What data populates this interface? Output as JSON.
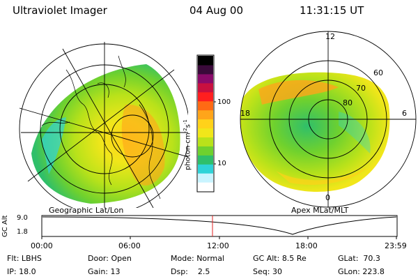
{
  "header": {
    "instrument": "Ultraviolet Imager",
    "date": "04 Aug 00",
    "time": "11:31:15 UT"
  },
  "colorbar": {
    "unit_prefix": "photon cm",
    "unit_exp1": "-2",
    "unit_mid": "s",
    "unit_exp2": "-1",
    "tick_100": "100",
    "tick_10": "10",
    "colors": [
      "#ffffff",
      "#c9f4ff",
      "#2fd3d8",
      "#2fbf6a",
      "#6fd12e",
      "#b9e21a",
      "#f1e61a",
      "#ffd21a",
      "#ffa51a",
      "#ff6a14",
      "#ff1f1f",
      "#c81040",
      "#8a0a6a",
      "#3a0a3a",
      "#000000"
    ]
  },
  "left_panel": {
    "label": "Geographic Lat/Lon"
  },
  "right_panel": {
    "label": "Apex MLat/MLT",
    "mlt_12": "12",
    "mlt_18": "18",
    "mlt_6": "6",
    "mlt_0": "0",
    "lat_60": "60",
    "lat_70": "70",
    "lat_80": "80"
  },
  "altitude_plot": {
    "ylabel": "GC Alt",
    "y_max": "9.0",
    "y_min": "1.8",
    "x_ticks": [
      "00:00",
      "06:00",
      "12:00",
      "18:00",
      "23:59"
    ],
    "marker_color": "#e02020"
  },
  "status": {
    "flt_label": "Flt:",
    "flt_value": "LBHS",
    "ip_label": "IP:",
    "ip_value": "18.0",
    "door_label": "Door:",
    "door_value": "Open",
    "gain_label": "Gain:",
    "gain_value": "13",
    "mode_label": "Mode:",
    "mode_value": "Normal",
    "dsp_label": "Dsp:",
    "dsp_value": "2.5",
    "gcalt_label": "GC Alt:",
    "gcalt_value": "8.5 Re",
    "seq_label": "Seq:",
    "seq_value": "30",
    "glat_label": "GLat:",
    "glat_value": "70.3",
    "glon_label": "GLon:",
    "glon_value": "223.8"
  }
}
